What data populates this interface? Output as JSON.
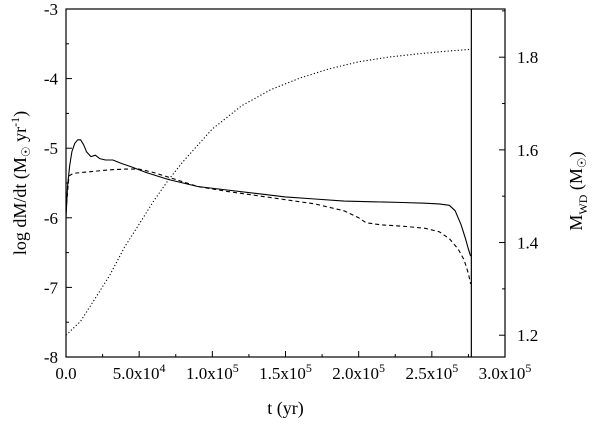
{
  "chart_data": {
    "type": "line",
    "title": "",
    "xlabel": "t (yr)",
    "ylabel": "log dM/dt  (M☉ yr⁻¹)",
    "ylabel_parts": {
      "main": "log dM/dt  (M",
      "sun": "☉",
      "mid": " yr",
      "sup": "-1",
      "end": ")"
    },
    "y2label_parts": {
      "main": "M",
      "sub": "WD",
      "mid": " (M",
      "sun": "☉",
      "end": ")"
    },
    "xlim": [
      0,
      300000
    ],
    "ylim": [
      -8,
      -3
    ],
    "y2lim": [
      1.153,
      1.904
    ],
    "x_ticks": [
      {
        "value": 0,
        "label": "0.0"
      },
      {
        "value": 50000,
        "label": "5.0x10",
        "exp": "4"
      },
      {
        "value": 100000,
        "label": "1.0x10",
        "exp": "5"
      },
      {
        "value": 150000,
        "label": "1.5x10",
        "exp": "5"
      },
      {
        "value": 200000,
        "label": "2.0x10",
        "exp": "5"
      },
      {
        "value": 250000,
        "label": "2.5x10",
        "exp": "5"
      },
      {
        "value": 300000,
        "label": "3.0x10",
        "exp": "5"
      }
    ],
    "y_ticks": [
      {
        "value": -3,
        "label": "-3"
      },
      {
        "value": -4,
        "label": "-4"
      },
      {
        "value": -5,
        "label": "-5"
      },
      {
        "value": -6,
        "label": "-6"
      },
      {
        "value": -7,
        "label": "-7"
      },
      {
        "value": -8,
        "label": "-8"
      }
    ],
    "y2_ticks": [
      {
        "value": 1.2,
        "label": "1.2"
      },
      {
        "value": 1.4,
        "label": "1.4"
      },
      {
        "value": 1.6,
        "label": "1.6"
      },
      {
        "value": 1.8,
        "label": "1.8"
      }
    ],
    "vertical_line_x": 277000,
    "series": [
      {
        "style": "solid",
        "axis": "left",
        "x": [
          0,
          1000,
          2500,
          4000,
          6000,
          8000,
          10000,
          12000,
          14000,
          17000,
          20000,
          23000,
          27000,
          32000,
          38000,
          45000,
          55000,
          70000,
          90000,
          110000,
          130000,
          150000,
          170000,
          190000,
          210000,
          230000,
          245000,
          255000,
          262000,
          266000,
          270000,
          273000,
          275000,
          276500
        ],
        "y": [
          -6.0,
          -5.55,
          -5.25,
          -5.05,
          -4.93,
          -4.88,
          -4.88,
          -4.95,
          -5.05,
          -5.12,
          -5.1,
          -5.15,
          -5.17,
          -5.17,
          -5.22,
          -5.27,
          -5.35,
          -5.45,
          -5.55,
          -5.6,
          -5.65,
          -5.7,
          -5.73,
          -5.76,
          -5.77,
          -5.78,
          -5.79,
          -5.8,
          -5.82,
          -5.9,
          -6.1,
          -6.3,
          -6.45,
          -6.55
        ]
      },
      {
        "style": "dashed",
        "axis": "left",
        "x": [
          0,
          2000,
          5000,
          10000,
          20000,
          30000,
          40000,
          50000,
          60000,
          75000,
          90000,
          110000,
          130000,
          150000,
          170000,
          190000,
          200000,
          205000,
          215000,
          230000,
          245000,
          255000,
          262000,
          268000,
          272000,
          275000,
          276500
        ],
        "y": [
          -5.9,
          -5.4,
          -5.36,
          -5.35,
          -5.33,
          -5.31,
          -5.3,
          -5.3,
          -5.35,
          -5.45,
          -5.55,
          -5.62,
          -5.68,
          -5.74,
          -5.8,
          -5.9,
          -6.0,
          -6.07,
          -6.1,
          -6.12,
          -6.15,
          -6.2,
          -6.3,
          -6.45,
          -6.6,
          -6.8,
          -6.95
        ]
      },
      {
        "style": "dotted",
        "axis": "right",
        "x": [
          0,
          10000,
          20000,
          30000,
          40000,
          50000,
          60000,
          70000,
          80000,
          90000,
          100000,
          120000,
          140000,
          160000,
          180000,
          200000,
          220000,
          240000,
          260000,
          277000
        ],
        "y": [
          1.2,
          1.23,
          1.28,
          1.33,
          1.39,
          1.44,
          1.49,
          1.535,
          1.575,
          1.61,
          1.645,
          1.695,
          1.73,
          1.755,
          1.775,
          1.79,
          1.8,
          1.807,
          1.813,
          1.817
        ]
      }
    ]
  }
}
